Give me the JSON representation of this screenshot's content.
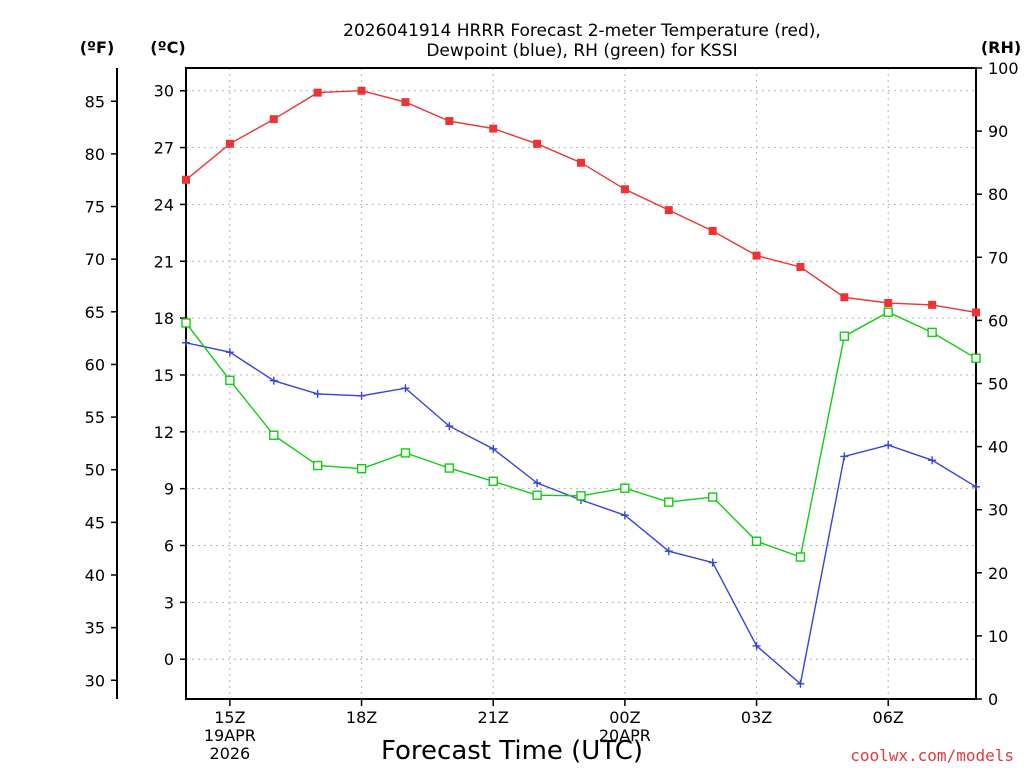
{
  "chart_data": {
    "type": "line",
    "title_lines": [
      "2026041914 HRRR Forecast 2-meter Temperature (red),",
      "Dewpoint (blue), RH (green) for KSSI"
    ],
    "xlabel": "Forecast Time (UTC)",
    "credit": "coolwx.com/models",
    "units": {
      "fahrenheit": "(ºF)",
      "celsius": "(ºC)",
      "rh": "(RH)"
    },
    "x_hours": [
      14,
      15,
      16,
      17,
      18,
      19,
      20,
      21,
      22,
      23,
      24,
      25,
      26,
      27,
      28,
      29,
      30,
      31,
      32
    ],
    "x_range": [
      14,
      32
    ],
    "x_ticks": [
      {
        "hour": 15,
        "label": "15Z",
        "sub1": "19APR",
        "sub2": "2026"
      },
      {
        "hour": 18,
        "label": "18Z"
      },
      {
        "hour": 21,
        "label": "21Z"
      },
      {
        "hour": 24,
        "label": "00Z",
        "sub1": "20APR"
      },
      {
        "hour": 27,
        "label": "03Z"
      },
      {
        "hour": 30,
        "label": "06Z"
      }
    ],
    "celsius_range": [
      -2.1,
      31.2
    ],
    "celsius_ticks": [
      0,
      3,
      6,
      9,
      12,
      15,
      18,
      21,
      24,
      27,
      30
    ],
    "fahrenheit_ticks": [
      30,
      35,
      40,
      45,
      50,
      55,
      60,
      65,
      70,
      75,
      80,
      85
    ],
    "rh_range": [
      0,
      100
    ],
    "rh_ticks": [
      0,
      10,
      20,
      30,
      40,
      50,
      60,
      70,
      80,
      90,
      100
    ],
    "series": [
      {
        "name": "Temperature",
        "unit": "C",
        "color": "#ee3333",
        "marker": "filled-square",
        "values": [
          25.3,
          27.2,
          28.5,
          29.9,
          30.0,
          29.4,
          28.4,
          28.0,
          27.2,
          26.2,
          24.8,
          23.7,
          22.6,
          21.3,
          20.7,
          19.1,
          18.8,
          18.7,
          18.3
        ]
      },
      {
        "name": "Dewpoint",
        "unit": "C",
        "color": "#3344dd",
        "marker": "plus",
        "values": [
          16.7,
          16.2,
          14.7,
          14.0,
          13.9,
          14.3,
          12.3,
          11.1,
          9.3,
          8.4,
          7.6,
          5.7,
          5.1,
          0.7,
          -1.3,
          10.7,
          11.3,
          10.5,
          9.1
        ]
      },
      {
        "name": "RH",
        "unit": "%",
        "color": "#11cc11",
        "marker": "open-square",
        "values": [
          59.6,
          50.5,
          41.8,
          37.0,
          36.5,
          39.0,
          36.6,
          34.5,
          32.3,
          32.2,
          33.4,
          31.2,
          32.0,
          25.0,
          22.5,
          57.5,
          61.3,
          58.1,
          54.0
        ]
      }
    ]
  }
}
